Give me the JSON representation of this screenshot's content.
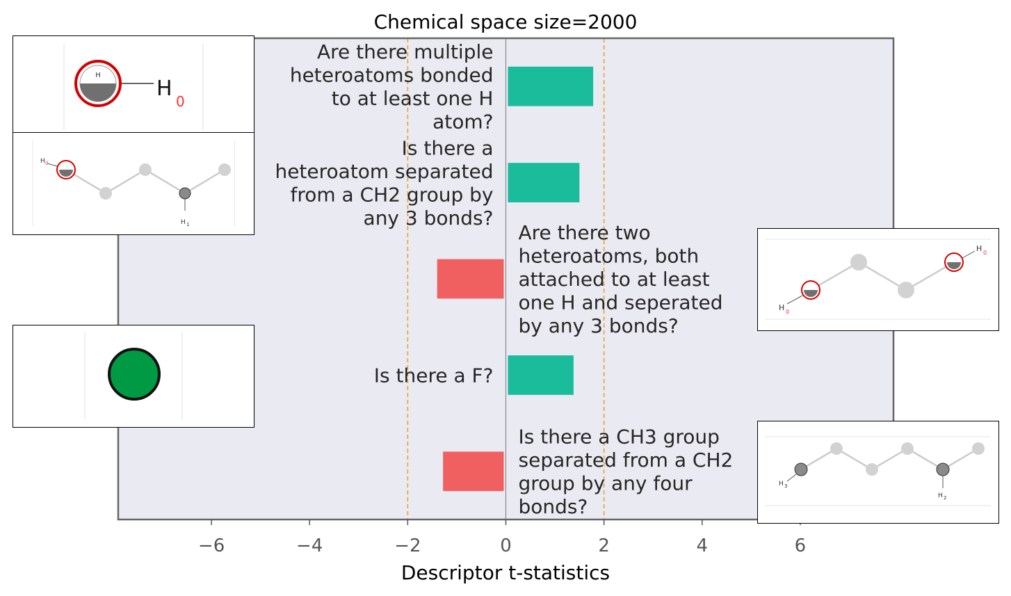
{
  "chart_data": {
    "type": "bar",
    "orientation": "horizontal",
    "title": "Chemical space size=2000",
    "xlabel": "Descriptor t-statistics",
    "xlim": [
      -7.9,
      7.9
    ],
    "xticks": [
      -6,
      -4,
      -2,
      0,
      2,
      4,
      6
    ],
    "xtick_labels": [
      "−6",
      "−4",
      "−2",
      "0",
      "2",
      "4",
      "6"
    ],
    "reference_lines": [
      -2,
      2
    ],
    "reference_line_color": "#f0a030",
    "positive_color": "#1abc9c",
    "negative_color": "#f06060",
    "background_color": "#eaeaf2",
    "grid": false,
    "categories": [
      "Are there multiple heteroatoms bonded to at least one H atom?",
      "Is there a heteroatom separated from a CH2 group by any 3 bonds?",
      "Are there two heteroatoms, both attached to at least one H and seperated by any 3 bonds?",
      "Is there a F?",
      "Is there a CH3 group separated from a CH2 group by any four bonds?"
    ],
    "category_lines": [
      [
        "Are there multiple",
        "heteroatoms bonded",
        "to at least one H",
        "atom?"
      ],
      [
        "Is there a",
        "heteroatom separated",
        "from a CH2 group by",
        "any 3 bonds?"
      ],
      [
        "Are there two",
        "heteroatoms, both",
        "attached to at least",
        "one H and seperated",
        "by any 3 bonds?"
      ],
      [
        "Is there a F?"
      ],
      [
        "Is there a CH3 group",
        "separated from a CH2",
        "group by any four",
        "bonds?"
      ]
    ],
    "values": [
      1.78,
      1.5,
      -1.4,
      1.38,
      -1.28
    ]
  },
  "thumbnails": [
    {
      "name": "multiple-heteroatoms-h",
      "labels": [
        "H",
        "H",
        "0"
      ]
    },
    {
      "name": "heteroatom-ch2-3-bonds",
      "labels": [
        "H",
        "0",
        "H",
        "1"
      ]
    },
    {
      "name": "two-heteroatoms-3-bonds",
      "labels": [
        "H",
        "0",
        "H",
        "0"
      ]
    },
    {
      "name": "fluorine-atom",
      "labels": []
    },
    {
      "name": "ch3-ch2-4-bonds",
      "labels": [
        "H",
        "3",
        "H",
        "2"
      ]
    }
  ]
}
